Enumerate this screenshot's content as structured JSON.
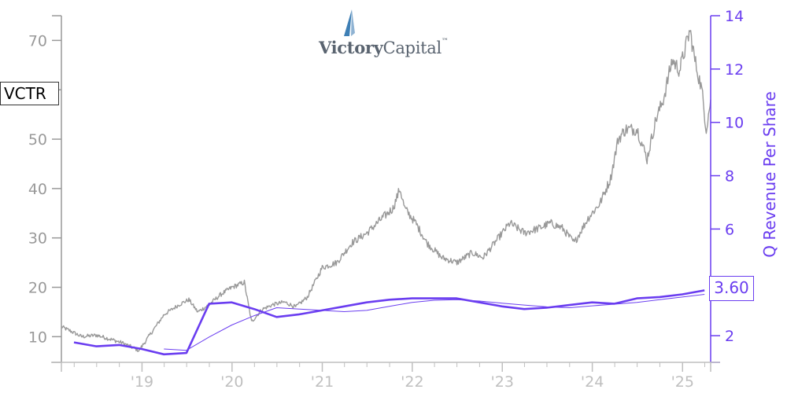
{
  "ticker": "VCTR",
  "current_value_label": "3.60",
  "logo": {
    "word1": "Victory",
    "word2": "Capital",
    "tm": "™"
  },
  "colors": {
    "price": "#999999",
    "revenue": "#6a3df0",
    "left_axis": "#999999",
    "x_axis": "#bfbfbf"
  },
  "chart_data": {
    "type": "line",
    "title": "",
    "xlabel": "",
    "ylabel_left": "",
    "ylabel_right": "Q Revenue Per Share",
    "x_range": [
      "2018-02-08",
      "2025-04-25"
    ],
    "x_tick_labels": [
      {
        "date": "2019-01-01",
        "label": "'19"
      },
      {
        "date": "2020-01-01",
        "label": "'20"
      },
      {
        "date": "2021-01-01",
        "label": "'21"
      },
      {
        "date": "2022-01-01",
        "label": "'22"
      },
      {
        "date": "2023-01-01",
        "label": "'23"
      },
      {
        "date": "2024-01-01",
        "label": "'24"
      },
      {
        "date": "2025-01-01",
        "label": "'25"
      }
    ],
    "ylim_left": [
      4.8,
      75
    ],
    "ylim_right": [
      1.0,
      14.0
    ],
    "y_ticks_left": [
      10,
      20,
      30,
      40,
      50,
      60,
      70
    ],
    "y_tick_labels_left": [
      "10",
      "20",
      "30",
      "40",
      "50",
      "",
      "70"
    ],
    "y_ticks_right": [
      2,
      4,
      6,
      8,
      10,
      12,
      14
    ],
    "y_tick_labels_right": [
      "2",
      "",
      "6",
      "8",
      "10",
      "12",
      "14"
    ],
    "series": [
      {
        "name": "VCTR",
        "axis": "left",
        "points": [
          [
            "2018-02-08",
            12.0
          ],
          [
            "2018-03-15",
            11.2
          ],
          [
            "2018-05-01",
            10.0
          ],
          [
            "2018-07-01",
            10.3
          ],
          [
            "2018-09-01",
            9.4
          ],
          [
            "2018-10-15",
            8.7
          ],
          [
            "2018-11-15",
            8.0
          ],
          [
            "2018-12-20",
            7.2
          ],
          [
            "2019-02-01",
            10.3
          ],
          [
            "2019-04-01",
            14.5
          ],
          [
            "2019-06-01",
            16.5
          ],
          [
            "2019-07-10",
            17.5
          ],
          [
            "2019-08-15",
            15.0
          ],
          [
            "2019-10-01",
            16.5
          ],
          [
            "2019-11-15",
            18.5
          ],
          [
            "2020-01-01",
            20.0
          ],
          [
            "2020-02-20",
            21.0
          ],
          [
            "2020-03-20",
            13.0
          ],
          [
            "2020-05-01",
            15.5
          ],
          [
            "2020-06-15",
            16.5
          ],
          [
            "2020-08-01",
            17.0
          ],
          [
            "2020-09-15",
            16.0
          ],
          [
            "2020-11-01",
            18.0
          ],
          [
            "2021-01-01",
            24.0
          ],
          [
            "2021-03-01",
            25.0
          ],
          [
            "2021-05-01",
            29.0
          ],
          [
            "2021-07-01",
            31.0
          ],
          [
            "2021-09-01",
            34.0
          ],
          [
            "2021-10-15",
            36.0
          ],
          [
            "2021-11-12",
            40.0
          ],
          [
            "2021-12-01",
            36.0
          ],
          [
            "2022-01-15",
            33.0
          ],
          [
            "2022-03-01",
            29.0
          ],
          [
            "2022-05-01",
            26.0
          ],
          [
            "2022-07-01",
            25.0
          ],
          [
            "2022-09-01",
            27.0
          ],
          [
            "2022-10-15",
            26.0
          ],
          [
            "2022-12-01",
            29.0
          ],
          [
            "2023-02-01",
            33.0
          ],
          [
            "2023-04-01",
            31.0
          ],
          [
            "2023-06-01",
            32.0
          ],
          [
            "2023-07-15",
            33.0
          ],
          [
            "2023-09-01",
            32.0
          ],
          [
            "2023-10-20",
            29.0
          ],
          [
            "2023-12-15",
            34.0
          ],
          [
            "2024-02-01",
            37.0
          ],
          [
            "2024-03-15",
            42.0
          ],
          [
            "2024-04-15",
            50.0
          ],
          [
            "2024-05-15",
            52.0
          ],
          [
            "2024-07-01",
            52.0
          ],
          [
            "2024-08-10",
            46.0
          ],
          [
            "2024-09-15",
            54.0
          ],
          [
            "2024-10-15",
            58.0
          ],
          [
            "2024-11-20",
            66.0
          ],
          [
            "2024-12-20",
            64.0
          ],
          [
            "2025-01-31",
            72.0
          ],
          [
            "2025-02-20",
            66.0
          ],
          [
            "2025-03-20",
            60.0
          ],
          [
            "2025-04-07",
            52.0
          ],
          [
            "2025-04-25",
            58.0
          ]
        ]
      },
      {
        "name": "Q Revenue Per Share",
        "axis": "right",
        "points": [
          [
            "2018-03-31",
            1.75
          ],
          [
            "2018-06-30",
            1.6
          ],
          [
            "2018-09-30",
            1.65
          ],
          [
            "2018-12-31",
            1.5
          ],
          [
            "2019-03-31",
            1.3
          ],
          [
            "2019-06-30",
            1.35
          ],
          [
            "2019-09-30",
            3.2
          ],
          [
            "2019-12-31",
            3.25
          ],
          [
            "2020-03-31",
            3.0
          ],
          [
            "2020-06-30",
            2.7
          ],
          [
            "2020-09-30",
            2.8
          ],
          [
            "2020-12-31",
            2.95
          ],
          [
            "2021-03-31",
            3.1
          ],
          [
            "2021-06-30",
            3.25
          ],
          [
            "2021-09-30",
            3.35
          ],
          [
            "2021-12-31",
            3.4
          ],
          [
            "2022-03-31",
            3.4
          ],
          [
            "2022-06-30",
            3.4
          ],
          [
            "2022-09-30",
            3.25
          ],
          [
            "2022-12-31",
            3.1
          ],
          [
            "2023-03-31",
            3.0
          ],
          [
            "2023-06-30",
            3.05
          ],
          [
            "2023-09-30",
            3.15
          ],
          [
            "2023-12-31",
            3.25
          ],
          [
            "2024-03-31",
            3.2
          ],
          [
            "2024-06-30",
            3.4
          ],
          [
            "2024-09-30",
            3.45
          ],
          [
            "2024-12-31",
            3.55
          ],
          [
            "2025-03-31",
            3.7
          ]
        ]
      },
      {
        "axis": "right",
        "style": "thin",
        "points": [
          [
            "2019-03-31",
            1.5
          ],
          [
            "2019-06-30",
            1.45
          ],
          [
            "2019-09-30",
            1.95
          ],
          [
            "2019-12-31",
            2.4
          ],
          [
            "2020-03-31",
            2.75
          ],
          [
            "2020-06-30",
            3.05
          ],
          [
            "2020-09-30",
            3.0
          ],
          [
            "2020-12-31",
            2.95
          ],
          [
            "2021-03-31",
            2.9
          ],
          [
            "2021-06-30",
            2.95
          ],
          [
            "2021-09-30",
            3.1
          ],
          [
            "2021-12-31",
            3.25
          ],
          [
            "2022-03-31",
            3.33
          ],
          [
            "2022-06-30",
            3.35
          ],
          [
            "2022-09-30",
            3.3
          ],
          [
            "2022-12-31",
            3.22
          ],
          [
            "2023-03-31",
            3.15
          ],
          [
            "2023-06-30",
            3.08
          ],
          [
            "2023-09-30",
            3.05
          ],
          [
            "2023-12-31",
            3.12
          ],
          [
            "2024-03-31",
            3.18
          ],
          [
            "2024-06-30",
            3.25
          ],
          [
            "2024-09-30",
            3.35
          ],
          [
            "2024-12-31",
            3.45
          ],
          [
            "2025-03-31",
            3.55
          ]
        ]
      }
    ]
  }
}
